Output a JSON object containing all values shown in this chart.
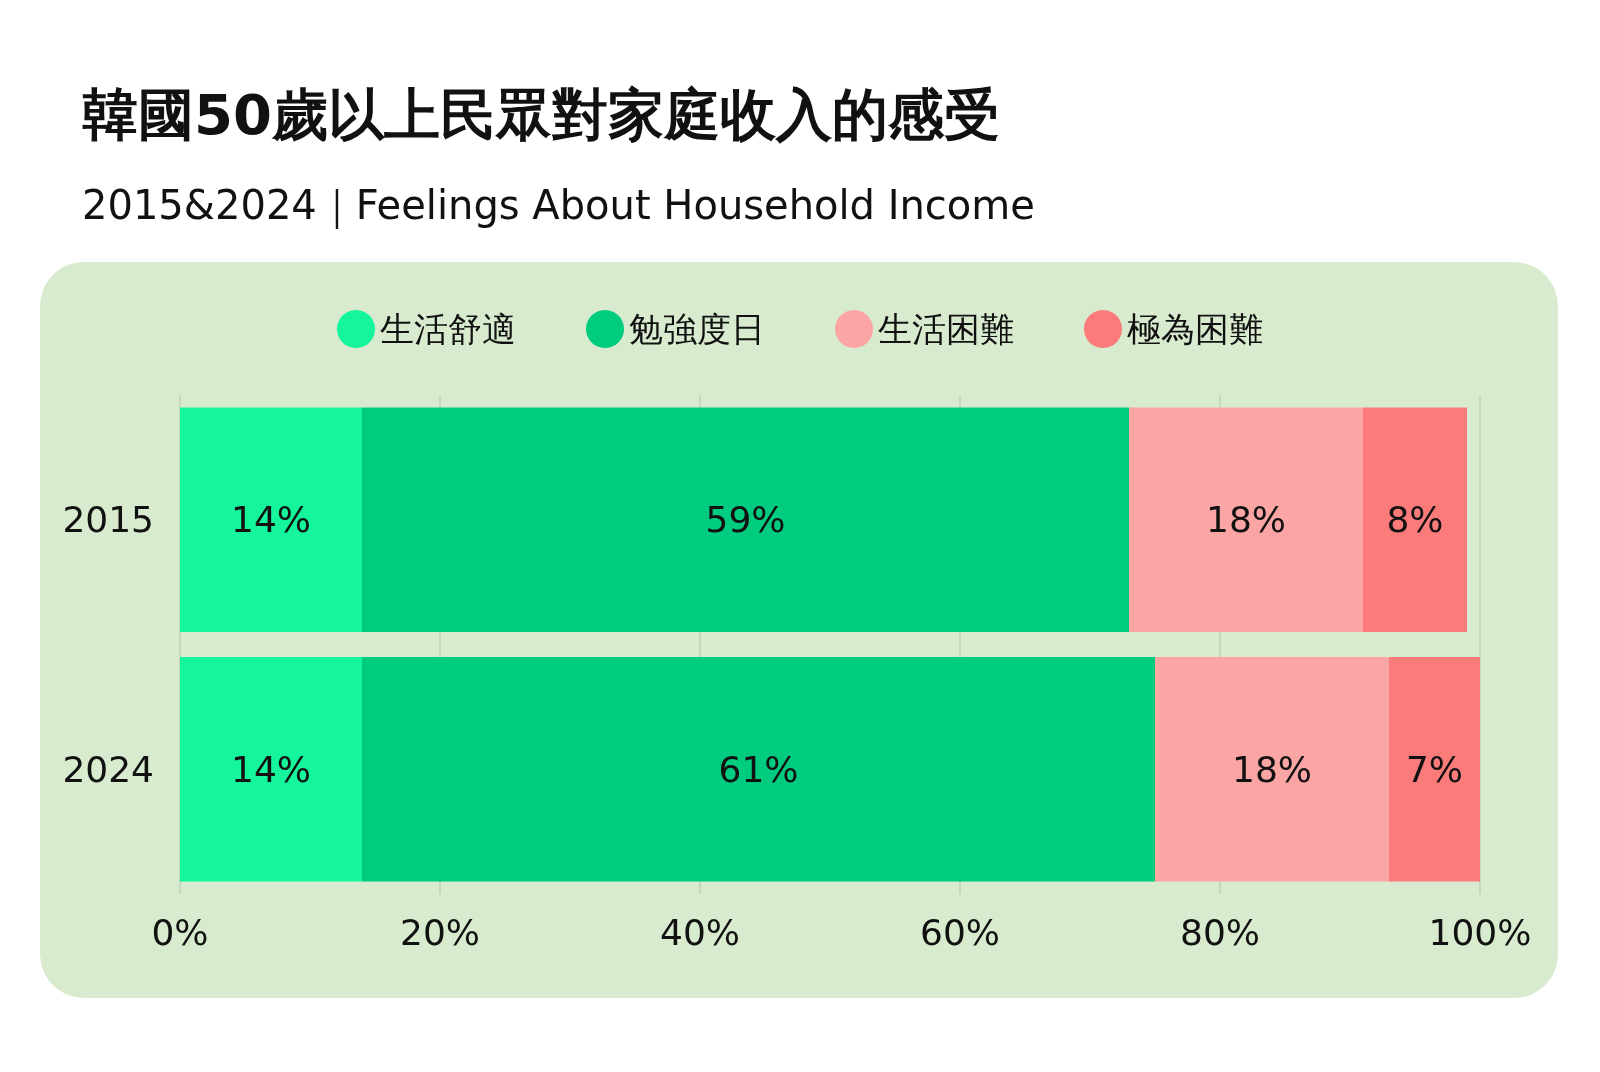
{
  "chart_data": {
    "type": "bar",
    "title": "韓國50歲以上民眾對家庭收入的感受",
    "subtitle": "2015&2024｜Feelings About Household Income",
    "orientation": "horizontal",
    "stacked": true,
    "categories": [
      "2015",
      "2024"
    ],
    "series": [
      {
        "name": "生活舒適",
        "color": "#14f59c",
        "values": [
          14,
          14
        ],
        "value_labels": [
          "14%",
          "14%"
        ]
      },
      {
        "name": "勉強度日",
        "color": "#00cc80",
        "values": [
          59,
          61
        ],
        "value_labels": [
          "59%",
          "61%"
        ]
      },
      {
        "name": "生活困難",
        "color": "#fca5a5",
        "values": [
          18,
          18
        ],
        "value_labels": [
          "18%",
          "18%"
        ]
      },
      {
        "name": "極為困難",
        "color": "#fb7b7b",
        "values": [
          8,
          7
        ],
        "value_labels": [
          "8%",
          "7%"
        ]
      }
    ],
    "xlim": [
      0,
      100
    ],
    "xticks": [
      {
        "value": 0,
        "label": "0%"
      },
      {
        "value": 20,
        "label": "20%"
      },
      {
        "value": 40,
        "label": "40%"
      },
      {
        "value": 60,
        "label": "60%"
      },
      {
        "value": 80,
        "label": "80%"
      },
      {
        "value": 100,
        "label": "100%"
      }
    ],
    "grid": "x",
    "legend": "top"
  }
}
